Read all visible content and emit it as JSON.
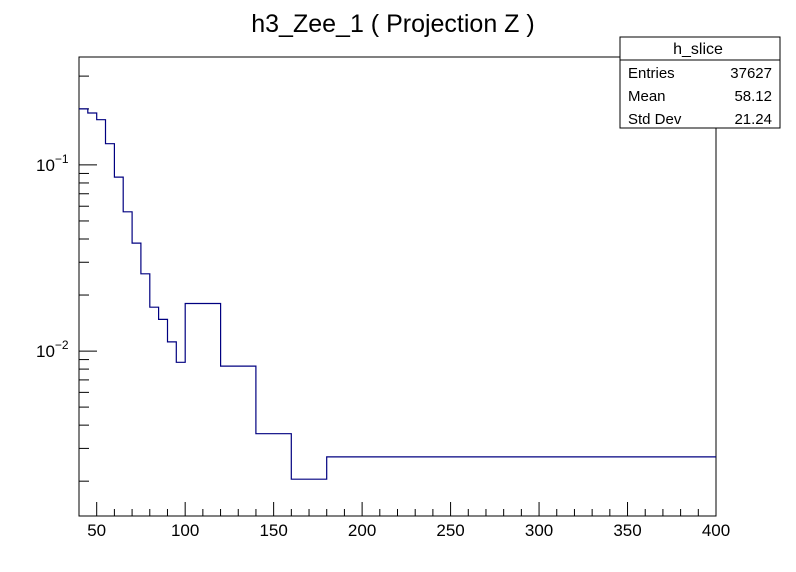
{
  "chart_data": {
    "type": "histogram",
    "title": "h3_Zee_1 ( Projection Z )",
    "xlabel": "",
    "ylabel": "",
    "xlim": [
      40,
      400
    ],
    "ylim": [
      0.0013,
      0.38
    ],
    "ylog": true,
    "grid": false,
    "line_color": "#000080",
    "x_ticks": [
      50,
      100,
      150,
      200,
      250,
      300,
      350,
      400
    ],
    "y_ticks": [
      {
        "value": 0.1,
        "mantissa": "10",
        "exponent": "−1"
      },
      {
        "value": 0.01,
        "mantissa": "10",
        "exponent": "−2"
      }
    ],
    "bin_edges": [
      40,
      45,
      50,
      55,
      60,
      65,
      70,
      75,
      80,
      85,
      90,
      95,
      100,
      120,
      140,
      160,
      180,
      400
    ],
    "values": [
      0.2,
      0.19,
      0.175,
      0.13,
      0.086,
      0.056,
      0.038,
      0.026,
      0.0172,
      0.0148,
      0.0112,
      0.0087,
      0.018,
      0.0083,
      0.0036,
      0.00205,
      0.0027
    ],
    "stats_box": {
      "name": "h_slice",
      "rows": [
        {
          "label": "Entries",
          "value": "37627"
        },
        {
          "label": "Mean",
          "value": "58.12"
        },
        {
          "label": "Std Dev",
          "value": "21.24"
        }
      ]
    }
  }
}
